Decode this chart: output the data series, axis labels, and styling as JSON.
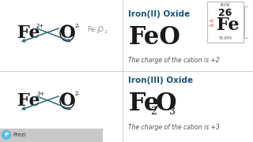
{
  "bg_color": "#f0f0f0",
  "panel_color": "#ffffff",
  "fe_color": "#1a1a1a",
  "o_color": "#1a1a1a",
  "arrow_color": "#2e6b7a",
  "title1": "Iron(II) Oxide",
  "title2": "Iron(III) Oxide",
  "charge_text1": "The charge of the cation is +2",
  "charge_text2": "The charge of the cation is +3",
  "periodic_name": "IRON",
  "periodic_number": "26",
  "periodic_mass": "55.845",
  "periodic_charge1": "+2",
  "periodic_charge2": "+3",
  "accent_color": "#cc2222",
  "title_color": "#1a5276",
  "text_color": "#555555",
  "divider_color": "#bbbbbb",
  "prezi_color": "#5bbfde",
  "gray_band": "#c8c8c8"
}
